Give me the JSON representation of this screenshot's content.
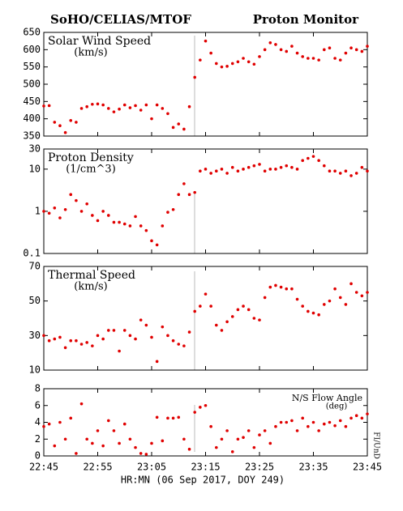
{
  "title": "SoHO/CELIAS/MTOF",
  "title_right": "Proton Monitor",
  "xlabel": "HR:MN (06 Sep 2017, DOY 249)",
  "side_label": "FI/UnD",
  "chart_data": [
    {
      "type": "scatter",
      "title": "Solar Wind Speed",
      "subtitle": "(km/s)",
      "color": "#e00000",
      "x": [
        1365,
        1366,
        1367,
        1368,
        1369,
        1370,
        1371,
        1372,
        1373,
        1374,
        1375,
        1376,
        1377,
        1378,
        1379,
        1380,
        1381,
        1382,
        1383,
        1384,
        1385,
        1386,
        1387,
        1388,
        1389,
        1390,
        1391,
        1392,
        1393,
        1394,
        1395,
        1396,
        1397,
        1398,
        1399,
        1400,
        1401,
        1402,
        1403,
        1404,
        1405,
        1406,
        1407,
        1408,
        1409,
        1410,
        1411,
        1412,
        1413,
        1414,
        1415,
        1416,
        1417,
        1418,
        1419,
        1420,
        1421,
        1422,
        1423,
        1424,
        1425
      ],
      "values": [
        437,
        438,
        390,
        380,
        360,
        395,
        390,
        430,
        435,
        442,
        443,
        440,
        430,
        420,
        428,
        440,
        432,
        438,
        425,
        440,
        400,
        440,
        430,
        415,
        375,
        385,
        370,
        435,
        520,
        570,
        625,
        590,
        560,
        550,
        552,
        560,
        565,
        575,
        565,
        558,
        580,
        600,
        620,
        615,
        600,
        595,
        610,
        590,
        580,
        575,
        575,
        570,
        600,
        605,
        575,
        570,
        590,
        605,
        600,
        595,
        610
      ],
      "xlim": [
        1365,
        1425
      ],
      "xticks": [
        {
          "value": 1365,
          "label": "22:45"
        },
        {
          "value": 1375,
          "label": "22:55"
        },
        {
          "value": 1385,
          "label": "23:05"
        },
        {
          "value": 1395,
          "label": "23:15"
        },
        {
          "value": 1405,
          "label": "23:25"
        },
        {
          "value": 1415,
          "label": "23:35"
        },
        {
          "value": 1425,
          "label": "23:45"
        }
      ],
      "ylim": [
        350,
        650
      ],
      "yticks": [
        350,
        400,
        450,
        500,
        550,
        600,
        650
      ],
      "log_y": false
    },
    {
      "type": "scatter",
      "title": "Proton Density",
      "subtitle": "(1/cm^3)",
      "color": "#e00000",
      "x": [
        1365,
        1366,
        1367,
        1368,
        1369,
        1370,
        1371,
        1372,
        1373,
        1374,
        1375,
        1376,
        1377,
        1378,
        1379,
        1380,
        1381,
        1382,
        1383,
        1384,
        1385,
        1386,
        1387,
        1388,
        1389,
        1390,
        1391,
        1392,
        1393,
        1394,
        1395,
        1396,
        1397,
        1398,
        1399,
        1400,
        1401,
        1402,
        1403,
        1404,
        1405,
        1406,
        1407,
        1408,
        1409,
        1410,
        1411,
        1412,
        1413,
        1414,
        1415,
        1416,
        1417,
        1418,
        1419,
        1420,
        1421,
        1422,
        1423,
        1424,
        1425
      ],
      "values": [
        1.0,
        0.9,
        1.2,
        0.7,
        1.1,
        2.5,
        1.8,
        1.0,
        1.5,
        0.8,
        0.6,
        1.0,
        0.8,
        0.55,
        0.55,
        0.5,
        0.45,
        0.75,
        0.45,
        0.35,
        0.2,
        0.16,
        0.45,
        0.95,
        1.1,
        2.5,
        4.5,
        2.5,
        2.8,
        9,
        10,
        8,
        9,
        10,
        8,
        11,
        9,
        10,
        11,
        12,
        13,
        9,
        10,
        10,
        11,
        12,
        11,
        10,
        16,
        18,
        20,
        16,
        12,
        9,
        9,
        8,
        9,
        7,
        8,
        11,
        9
      ],
      "xlim": [
        1365,
        1425
      ],
      "xticks": [
        {
          "value": 1365,
          "label": "22:45"
        },
        {
          "value": 1375,
          "label": "22:55"
        },
        {
          "value": 1385,
          "label": "23:05"
        },
        {
          "value": 1395,
          "label": "23:15"
        },
        {
          "value": 1405,
          "label": "23:25"
        },
        {
          "value": 1415,
          "label": "23:35"
        },
        {
          "value": 1425,
          "label": "23:45"
        }
      ],
      "ylim": [
        0.1,
        30
      ],
      "yticks": [
        0.1,
        1,
        10,
        30
      ],
      "log_y": true
    },
    {
      "type": "scatter",
      "title": "Thermal Speed",
      "subtitle": "(km/s)",
      "color": "#e00000",
      "x": [
        1365,
        1366,
        1367,
        1368,
        1369,
        1370,
        1371,
        1372,
        1373,
        1374,
        1375,
        1376,
        1377,
        1378,
        1379,
        1380,
        1381,
        1382,
        1383,
        1384,
        1385,
        1386,
        1387,
        1388,
        1389,
        1390,
        1391,
        1392,
        1393,
        1394,
        1395,
        1396,
        1397,
        1398,
        1399,
        1400,
        1401,
        1402,
        1403,
        1404,
        1405,
        1406,
        1407,
        1408,
        1409,
        1410,
        1411,
        1412,
        1413,
        1414,
        1415,
        1416,
        1417,
        1418,
        1419,
        1420,
        1421,
        1422,
        1423,
        1424,
        1425
      ],
      "values": [
        30,
        27,
        28,
        29,
        23,
        27,
        27,
        25,
        26,
        24,
        30,
        28,
        33,
        33,
        21,
        33,
        30,
        28,
        39,
        36,
        29,
        15,
        35,
        30,
        27,
        25,
        24,
        32,
        44,
        47,
        54,
        47,
        36,
        33,
        38,
        41,
        45,
        47,
        45,
        40,
        39,
        52,
        58,
        59,
        58,
        57,
        57,
        51,
        47,
        44,
        43,
        42,
        48,
        50,
        57,
        52,
        48,
        60,
        55,
        53,
        55
      ],
      "xlim": [
        1365,
        1425
      ],
      "xticks": [
        {
          "value": 1365,
          "label": "22:45"
        },
        {
          "value": 1375,
          "label": "22:55"
        },
        {
          "value": 1385,
          "label": "23:05"
        },
        {
          "value": 1395,
          "label": "23:15"
        },
        {
          "value": 1405,
          "label": "23:25"
        },
        {
          "value": 1415,
          "label": "23:35"
        },
        {
          "value": 1425,
          "label": "23:45"
        }
      ],
      "ylim": [
        10,
        70
      ],
      "yticks": [
        10,
        30,
        50,
        70
      ],
      "log_y": false
    },
    {
      "type": "scatter",
      "title": "N/S Flow Angle",
      "subtitle": "(deg)",
      "color": "#e00000",
      "x": [
        1365,
        1366,
        1367,
        1368,
        1369,
        1370,
        1371,
        1372,
        1373,
        1374,
        1375,
        1376,
        1377,
        1378,
        1379,
        1380,
        1381,
        1382,
        1383,
        1384,
        1385,
        1386,
        1387,
        1388,
        1389,
        1390,
        1391,
        1392,
        1393,
        1394,
        1395,
        1396,
        1397,
        1398,
        1399,
        1400,
        1401,
        1402,
        1403,
        1404,
        1405,
        1406,
        1407,
        1408,
        1409,
        1410,
        1411,
        1412,
        1413,
        1414,
        1415,
        1416,
        1417,
        1418,
        1419,
        1420,
        1421,
        1422,
        1423,
        1424,
        1425
      ],
      "values": [
        3.5,
        3.8,
        1.2,
        4.0,
        2.0,
        4.5,
        0.3,
        6.2,
        2.0,
        1.5,
        3.0,
        1.2,
        4.2,
        3.0,
        1.5,
        3.8,
        2.0,
        1.0,
        0.3,
        0.2,
        1.5,
        4.6,
        1.8,
        4.5,
        4.5,
        4.6,
        2.0,
        0.8,
        5.2,
        5.8,
        6.0,
        3.5,
        1.0,
        2.0,
        3.0,
        0.5,
        2.0,
        2.2,
        3.0,
        1.0,
        2.5,
        3.0,
        1.5,
        3.5,
        4.0,
        4.0,
        4.2,
        3.0,
        4.5,
        3.5,
        4.0,
        3.0,
        3.8,
        4.0,
        3.6,
        4.2,
        3.5,
        4.5,
        4.8,
        4.5,
        5.0
      ],
      "xlim": [
        1365,
        1425
      ],
      "xticks": [
        {
          "value": 1365,
          "label": "22:45"
        },
        {
          "value": 1375,
          "label": "22:55"
        },
        {
          "value": 1385,
          "label": "23:05"
        },
        {
          "value": 1395,
          "label": "23:15"
        },
        {
          "value": 1405,
          "label": "23:25"
        },
        {
          "value": 1415,
          "label": "23:35"
        },
        {
          "value": 1425,
          "label": "23:45"
        }
      ],
      "ylim": [
        0,
        8
      ],
      "yticks": [
        0,
        2,
        4,
        6,
        8
      ],
      "log_y": false
    }
  ]
}
